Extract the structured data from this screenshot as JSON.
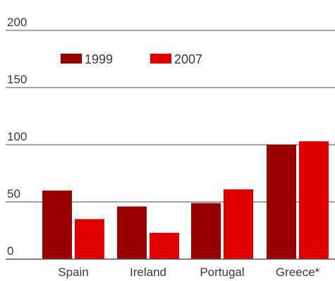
{
  "chart_data": {
    "type": "bar",
    "title": "",
    "xlabel": "",
    "ylabel": "",
    "ylim": [
      0,
      200
    ],
    "yticks": [
      0,
      50,
      100,
      150,
      200
    ],
    "grid": true,
    "legend_placement": "top-left",
    "categories": [
      "Spain",
      "Ireland",
      "Portugal",
      "Greece*"
    ],
    "series": [
      {
        "name": "1999",
        "color": "#990000",
        "values": [
          60,
          46,
          49,
          100
        ]
      },
      {
        "name": "2007",
        "color": "#e00000",
        "values": [
          35,
          23,
          61,
          103
        ]
      }
    ]
  }
}
